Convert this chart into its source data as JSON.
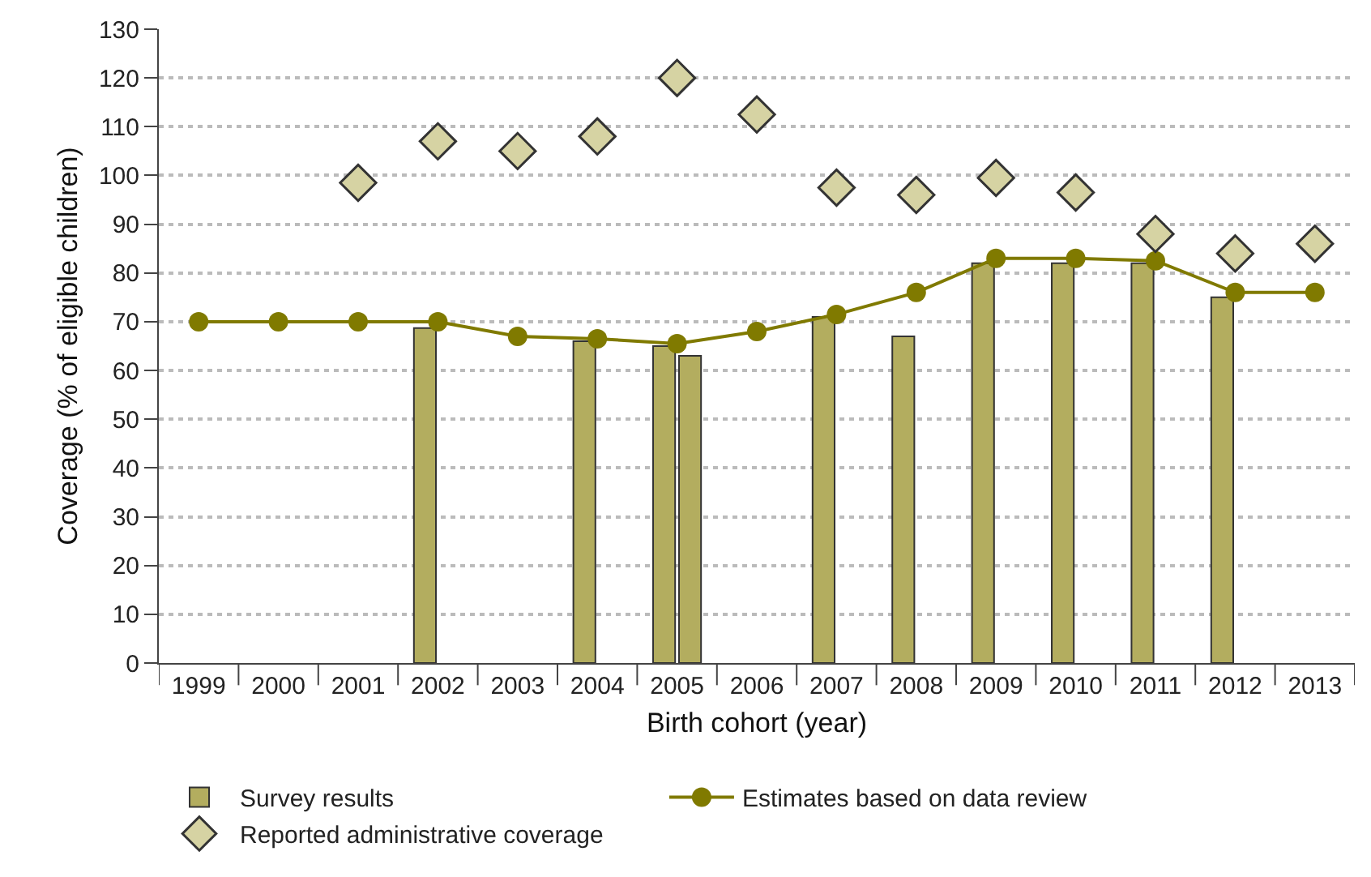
{
  "chart_data": {
    "type": "bar",
    "xlabel": "Birth cohort (year)",
    "ylabel": "Coverage (% of eligible children)",
    "categories": [
      "1999",
      "2000",
      "2001",
      "2002",
      "2003",
      "2004",
      "2005",
      "2006",
      "2007",
      "2008",
      "2009",
      "2010",
      "2011",
      "2012",
      "2013"
    ],
    "series": [
      {
        "name": "Survey results",
        "color": "#b3ad5f",
        "values": [
          null,
          null,
          null,
          68.7,
          null,
          66,
          65,
          null,
          71,
          67,
          82,
          82,
          82,
          75,
          null
        ]
      },
      {
        "color": "#b3ad5f",
        "values": [
          null,
          null,
          null,
          null,
          null,
          null,
          63,
          null,
          null,
          null,
          null,
          null,
          null,
          null,
          null
        ]
      },
      {
        "name": "Estimates based on data review",
        "type": "line",
        "color": "#807a00",
        "marker": "circle",
        "line_style": "solid",
        "values": [
          70,
          70,
          70,
          70,
          67,
          66.5,
          65.5,
          68,
          71.5,
          76,
          83,
          83,
          82.5,
          76,
          76
        ]
      },
      {
        "name": "Reported administrative coverage",
        "type": "scatter",
        "color": "#d6d3a3",
        "marker": "diamond",
        "values": [
          null,
          null,
          98.5,
          107,
          105,
          108,
          120,
          112.5,
          97.5,
          96,
          99.5,
          96.5,
          88,
          84,
          86
        ]
      }
    ],
    "ylim": [
      0,
      130
    ],
    "yticks": [
      0,
      10,
      20,
      30,
      40,
      50,
      60,
      70,
      80,
      90,
      100,
      110,
      120,
      130
    ],
    "grid": "y",
    "legend": "bottom left"
  }
}
